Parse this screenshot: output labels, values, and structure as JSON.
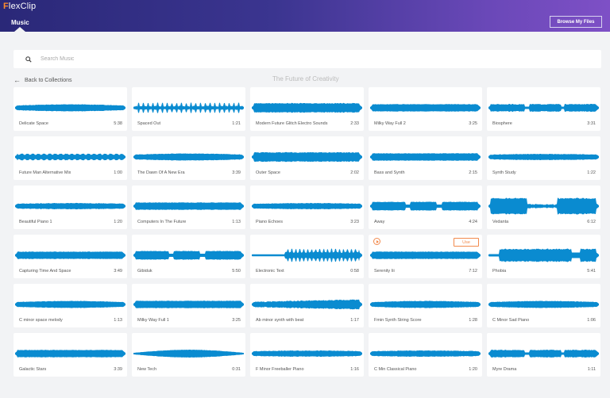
{
  "header": {
    "logo_first": "F",
    "logo_rest": "lexClip",
    "active_tab": "Music",
    "browse_button": "Browse My Files"
  },
  "search": {
    "placeholder": "Search Music",
    "value": ""
  },
  "nav": {
    "back_label": "Back to Collections",
    "collection_title": "The Future of Creativity"
  },
  "colors": {
    "waveform": "#0a8bd0",
    "accent_orange": "#f28a4c",
    "header_left": "#2a2878",
    "header_right": "#7e50c6"
  },
  "hover_card": {
    "index": 18,
    "use_label": "Use"
  },
  "tracks": [
    {
      "title": "Delicate Space",
      "duration": "5:38",
      "shape": "smooth"
    },
    {
      "title": "Spaced Out",
      "duration": "1:21",
      "shape": "spiky"
    },
    {
      "title": "Modern Future Glitch Electro Sounds",
      "duration": "2:33",
      "shape": "thick"
    },
    {
      "title": "Milky Way Full 2",
      "duration": "3:25",
      "shape": "flat"
    },
    {
      "title": "Biosphere",
      "duration": "3:31",
      "shape": "segments"
    },
    {
      "title": "Future Man Alternative Mix",
      "duration": "1:00",
      "shape": "beats"
    },
    {
      "title": "The Dawn Of A New Era",
      "duration": "3:39",
      "shape": "smooth"
    },
    {
      "title": "Outer Space",
      "duration": "2:02",
      "shape": "thick"
    },
    {
      "title": "Bass and Synth",
      "duration": "2:15",
      "shape": "flat"
    },
    {
      "title": "Synth Study",
      "duration": "1:22",
      "shape": "thin"
    },
    {
      "title": "Beautiful Piano 1",
      "duration": "1:20",
      "shape": "thin"
    },
    {
      "title": "Computers In The Future",
      "duration": "1:13",
      "shape": "flat"
    },
    {
      "title": "Piano Echoes",
      "duration": "3:23",
      "shape": "thin"
    },
    {
      "title": "Away",
      "duration": "4:24",
      "shape": "dips"
    },
    {
      "title": "Vedanta",
      "duration": "6:12",
      "shape": "vedanta"
    },
    {
      "title": "Capturing Time And Space",
      "duration": "3:49",
      "shape": "flat"
    },
    {
      "title": "Gibiduk",
      "duration": "5:50",
      "shape": "dips"
    },
    {
      "title": "Electronic Text",
      "duration": "0:58",
      "shape": "electronic"
    },
    {
      "title": "Serenity Iii",
      "duration": "7:12",
      "shape": "flat"
    },
    {
      "title": "Phobia",
      "duration": "5:41",
      "shape": "phobia"
    },
    {
      "title": "C minor space melody",
      "duration": "1:13",
      "shape": "smooth"
    },
    {
      "title": "Milky Way Full 1",
      "duration": "3:25",
      "shape": "flat"
    },
    {
      "title": "Ab minor synth with beat",
      "duration": "1:17",
      "shape": "rising"
    },
    {
      "title": "Fmin Synth String Score",
      "duration": "1:28",
      "shape": "smooth"
    },
    {
      "title": "C Minor Sad Piano",
      "duration": "1:06",
      "shape": "smooth"
    },
    {
      "title": "Galactic Stars",
      "duration": "3:39",
      "shape": "flat"
    },
    {
      "title": "New Tech",
      "duration": "0:31",
      "shape": "lens"
    },
    {
      "title": "F Minor Freeballer Piano",
      "duration": "1:16",
      "shape": "thin"
    },
    {
      "title": "C Min Classical Piano",
      "duration": "1:20",
      "shape": "thin"
    },
    {
      "title": "Myre Drama",
      "duration": "1:11",
      "shape": "segments"
    }
  ]
}
